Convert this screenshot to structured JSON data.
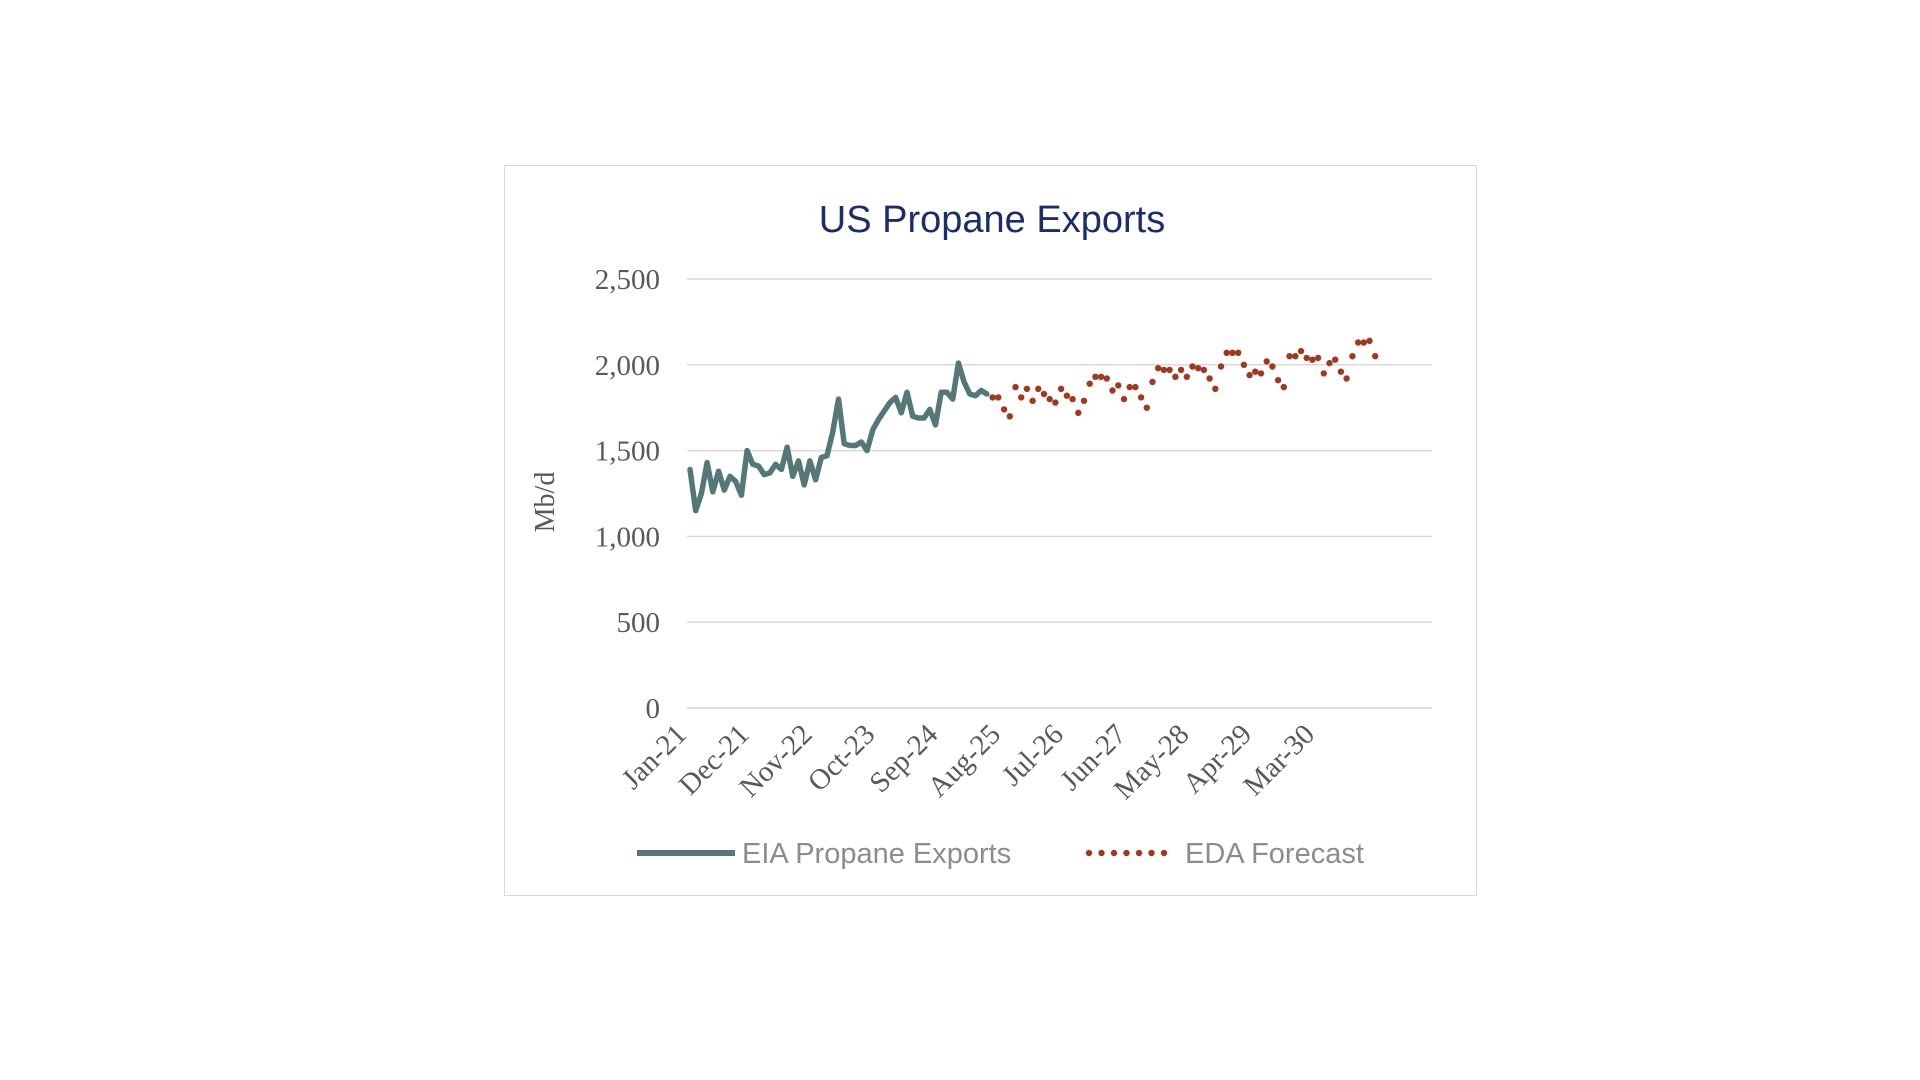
{
  "chart_data": {
    "type": "line",
    "title": "US Propane Exports",
    "ylabel": "Mb/d",
    "xlabel": "",
    "ylim": [
      0,
      2500
    ],
    "yticks": [
      0,
      500,
      1000,
      1500,
      2000,
      2500
    ],
    "ytick_labels": [
      "0",
      "500",
      "1,000",
      "1,500",
      "2,000",
      "2,500"
    ],
    "x_start": "Jan-21",
    "xtick_labels": [
      "Jan-21",
      "Dec-21",
      "Nov-22",
      "Oct-23",
      "Sep-24",
      "Aug-25",
      "Jul-26",
      "Jun-27",
      "May-28",
      "Apr-29",
      "Mar-30"
    ],
    "grid": true,
    "legend_position": "bottom",
    "colors": {
      "actual": "#547878",
      "forecast": "#a0391e",
      "title": "#1a2e6e",
      "grid": "#d9d9d9"
    },
    "series": [
      {
        "name": "EIA Propane Exports",
        "style": "solid",
        "start_month": "Jan-21",
        "values": [
          1390,
          1150,
          1250,
          1430,
          1260,
          1380,
          1270,
          1350,
          1320,
          1240,
          1500,
          1420,
          1410,
          1360,
          1370,
          1420,
          1390,
          1520,
          1350,
          1440,
          1300,
          1440,
          1330,
          1460,
          1470,
          1610,
          1800,
          1540,
          1530,
          1530,
          1550,
          1500,
          1620,
          1680,
          1730,
          1780,
          1810,
          1720,
          1840,
          1700,
          1690,
          1690,
          1740,
          1650,
          1840,
          1840,
          1800,
          2010,
          1900,
          1830,
          1820,
          1850,
          1830
        ]
      },
      {
        "name": "EDA Forecast",
        "style": "dotted",
        "start_month": "Jun-25",
        "values": [
          1810,
          1810,
          1740,
          1700,
          1870,
          1810,
          1860,
          1790,
          1860,
          1830,
          1800,
          1780,
          1860,
          1820,
          1800,
          1720,
          1790,
          1890,
          1930,
          1930,
          1920,
          1850,
          1880,
          1800,
          1870,
          1870,
          1810,
          1750,
          1900,
          1980,
          1970,
          1970,
          1930,
          1970,
          1930,
          1990,
          1980,
          1970,
          1920,
          1860,
          1990,
          2070,
          2070,
          2070,
          2000,
          1940,
          1960,
          1950,
          2020,
          1990,
          1910,
          1870,
          2050,
          2050,
          2080,
          2040,
          2030,
          2040,
          1950,
          2010,
          2030,
          1960,
          1920,
          2050,
          2130,
          2130,
          2140,
          2050
        ]
      }
    ]
  }
}
